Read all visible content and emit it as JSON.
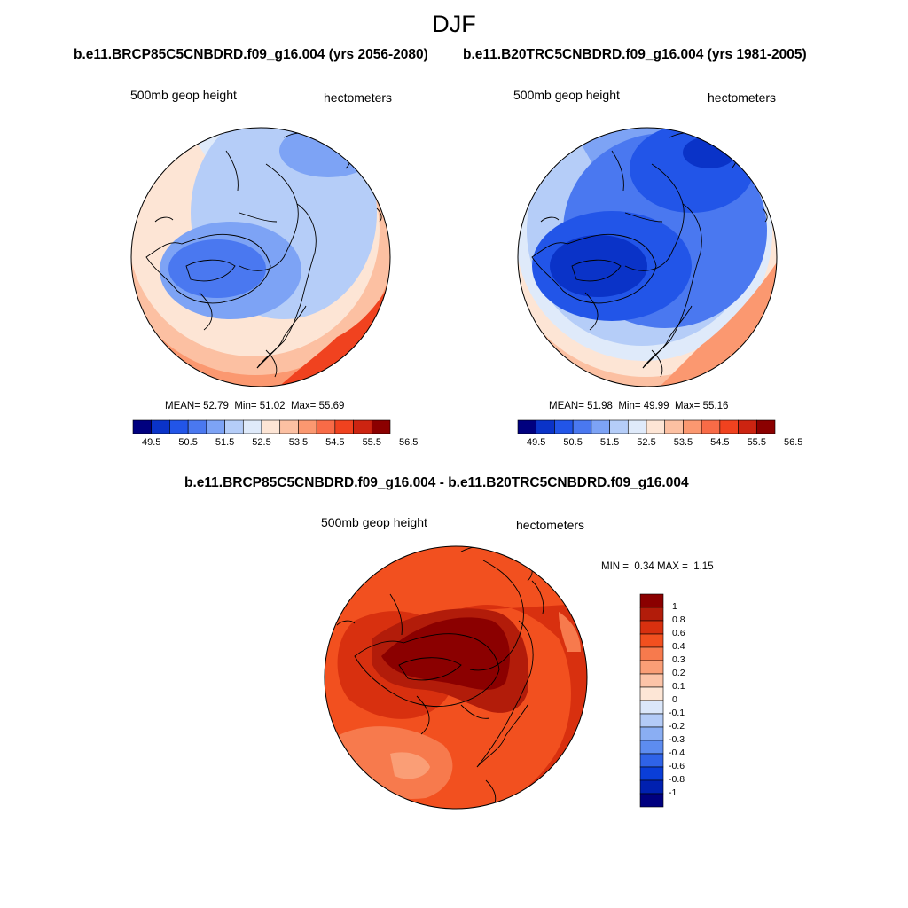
{
  "title": "DJF",
  "panels": [
    {
      "header": "b.e11.BRCP85C5CNBDRD.f09_g16.004 (yrs 2056-2080)",
      "left_label": "500mb geop height",
      "right_label": "hectometers",
      "stats": {
        "mean_label": "MEAN=",
        "mean": "52.79",
        "min_label": "Min=",
        "min": "51.02",
        "max_label": "Max=",
        "max": "55.69"
      }
    },
    {
      "header": "b.e11.B20TRC5CNBDRD.f09_g16.004 (yrs 1981-2005)",
      "left_label": "500mb geop height",
      "right_label": "hectometers",
      "stats": {
        "mean_label": "MEAN=",
        "mean": "51.98",
        "min_label": "Min=",
        "min": "49.99",
        "max_label": "Max=",
        "max": "55.16"
      }
    },
    {
      "header": "b.e11.BRCP85C5CNBDRD.f09_g16.004 - b.e11.B20TRC5CNBDRD.f09_g16.004",
      "left_label": "500mb geop height",
      "right_label": "hectometers",
      "stats": {
        "min_label": "MIN =",
        "min": "0.34",
        "max_label": "MAX =",
        "max": "1.15"
      }
    }
  ],
  "chart_data": [
    {
      "type": "heatmap",
      "title": "500mb geop height",
      "units": "hectometers",
      "period": "yrs 2056-2080",
      "mean": 52.79,
      "min": 51.02,
      "max": 55.69,
      "colorbar": {
        "colors": [
          "#00007f",
          "#0a33c8",
          "#2255e8",
          "#4a78f0",
          "#7da3f5",
          "#b5cdf8",
          "#dfeafa",
          "#fde5d5",
          "#fcc0a2",
          "#fb9870",
          "#f86b47",
          "#f0421f",
          "#cc2411",
          "#8b0000"
        ],
        "ticks": [
          "49.5",
          "50.5",
          "51.5",
          "52.5",
          "53.5",
          "54.5",
          "55.5",
          "56.5"
        ]
      }
    },
    {
      "type": "heatmap",
      "title": "500mb geop height",
      "units": "hectometers",
      "period": "yrs 1981-2005",
      "mean": 51.98,
      "min": 49.99,
      "max": 55.16,
      "colorbar": {
        "colors": [
          "#00007f",
          "#0a33c8",
          "#2255e8",
          "#4a78f0",
          "#7da3f5",
          "#b5cdf8",
          "#dfeafa",
          "#fde5d5",
          "#fcc0a2",
          "#fb9870",
          "#f86b47",
          "#f0421f",
          "#cc2411",
          "#8b0000"
        ],
        "ticks": [
          "49.5",
          "50.5",
          "51.5",
          "52.5",
          "53.5",
          "54.5",
          "55.5",
          "56.5"
        ]
      }
    },
    {
      "type": "heatmap",
      "title": "500mb geop height",
      "units": "hectometers",
      "period": "difference",
      "min": 0.34,
      "max": 1.15,
      "colorbar": {
        "colors": [
          "#8b0000",
          "#b21c0a",
          "#d8300f",
          "#f2501f",
          "#f77a4d",
          "#fa9e76",
          "#fcc4a8",
          "#fde6d6",
          "#dbe7fa",
          "#b3cbf7",
          "#8aaef3",
          "#5d8cf0",
          "#2f63e8",
          "#0a3ed8",
          "#0020b0",
          "#00007f"
        ],
        "ticks": [
          "1",
          "0.8",
          "0.6",
          "0.4",
          "0.3",
          "0.2",
          "0.1",
          "0",
          "-0.1",
          "-0.2",
          "-0.3",
          "-0.4",
          "-0.6",
          "-0.8",
          "-1"
        ]
      }
    }
  ]
}
